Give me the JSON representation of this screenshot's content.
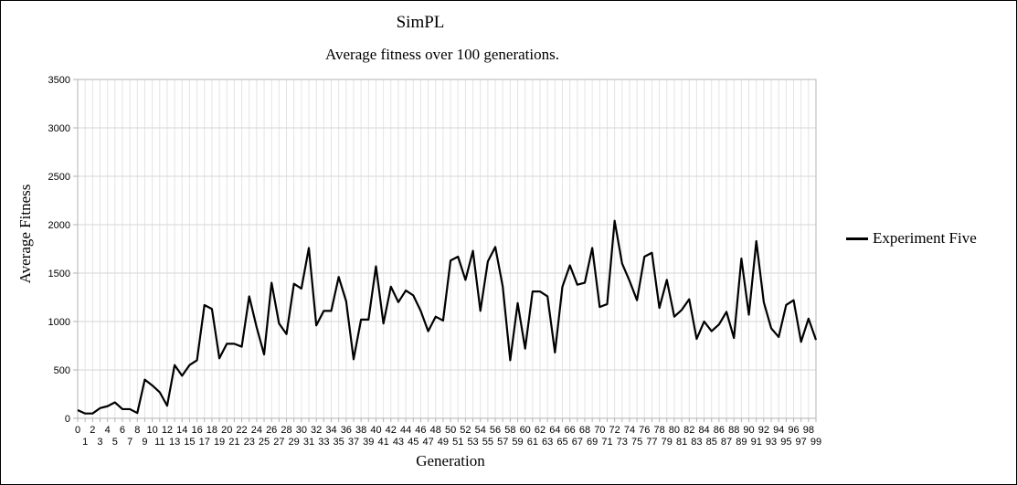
{
  "chart_data": {
    "type": "line",
    "title": "SimPL",
    "subtitle": "Average fitness over 100 generations.",
    "xlabel": "Generation",
    "ylabel": "Average Fitness",
    "ylim": [
      0,
      3500
    ],
    "yticks": [
      0,
      500,
      1000,
      1500,
      2000,
      2500,
      3000,
      3500
    ],
    "xlim": [
      0,
      99
    ],
    "grid": true,
    "legend_position": "right",
    "x": [
      0,
      1,
      2,
      3,
      4,
      5,
      6,
      7,
      8,
      9,
      10,
      11,
      12,
      13,
      14,
      15,
      16,
      17,
      18,
      19,
      20,
      21,
      22,
      23,
      24,
      25,
      26,
      27,
      28,
      29,
      30,
      31,
      32,
      33,
      34,
      35,
      36,
      37,
      38,
      39,
      40,
      41,
      42,
      43,
      44,
      45,
      46,
      47,
      48,
      49,
      50,
      51,
      52,
      53,
      54,
      55,
      56,
      57,
      58,
      59,
      60,
      61,
      62,
      63,
      64,
      65,
      66,
      67,
      68,
      69,
      70,
      71,
      72,
      73,
      74,
      75,
      76,
      77,
      78,
      79,
      80,
      81,
      82,
      83,
      84,
      85,
      86,
      87,
      88,
      89,
      90,
      91,
      92,
      93,
      94,
      95,
      96,
      97,
      98,
      99
    ],
    "series": [
      {
        "name": "Experiment Five",
        "color": "#000000",
        "values": [
          85,
          50,
          50,
          105,
          125,
          165,
          95,
          95,
          55,
          400,
          340,
          270,
          130,
          550,
          440,
          550,
          600,
          1170,
          1130,
          620,
          770,
          770,
          740,
          1260,
          940,
          660,
          1400,
          980,
          870,
          1390,
          1340,
          1760,
          960,
          1110,
          1110,
          1460,
          1210,
          610,
          1020,
          1020,
          1570,
          980,
          1360,
          1200,
          1320,
          1270,
          1110,
          900,
          1050,
          1010,
          1630,
          1670,
          1430,
          1730,
          1110,
          1620,
          1770,
          1360,
          600,
          1190,
          720,
          1310,
          1310,
          1260,
          680,
          1360,
          1580,
          1380,
          1400,
          1760,
          1150,
          1180,
          2040,
          1600,
          1420,
          1220,
          1670,
          1710,
          1140,
          1430,
          1050,
          1120,
          1230,
          820,
          1000,
          900,
          970,
          1100,
          830,
          1650,
          1070,
          1830,
          1200,
          930,
          840,
          1170,
          1220,
          790,
          1030,
          810
        ]
      }
    ]
  }
}
